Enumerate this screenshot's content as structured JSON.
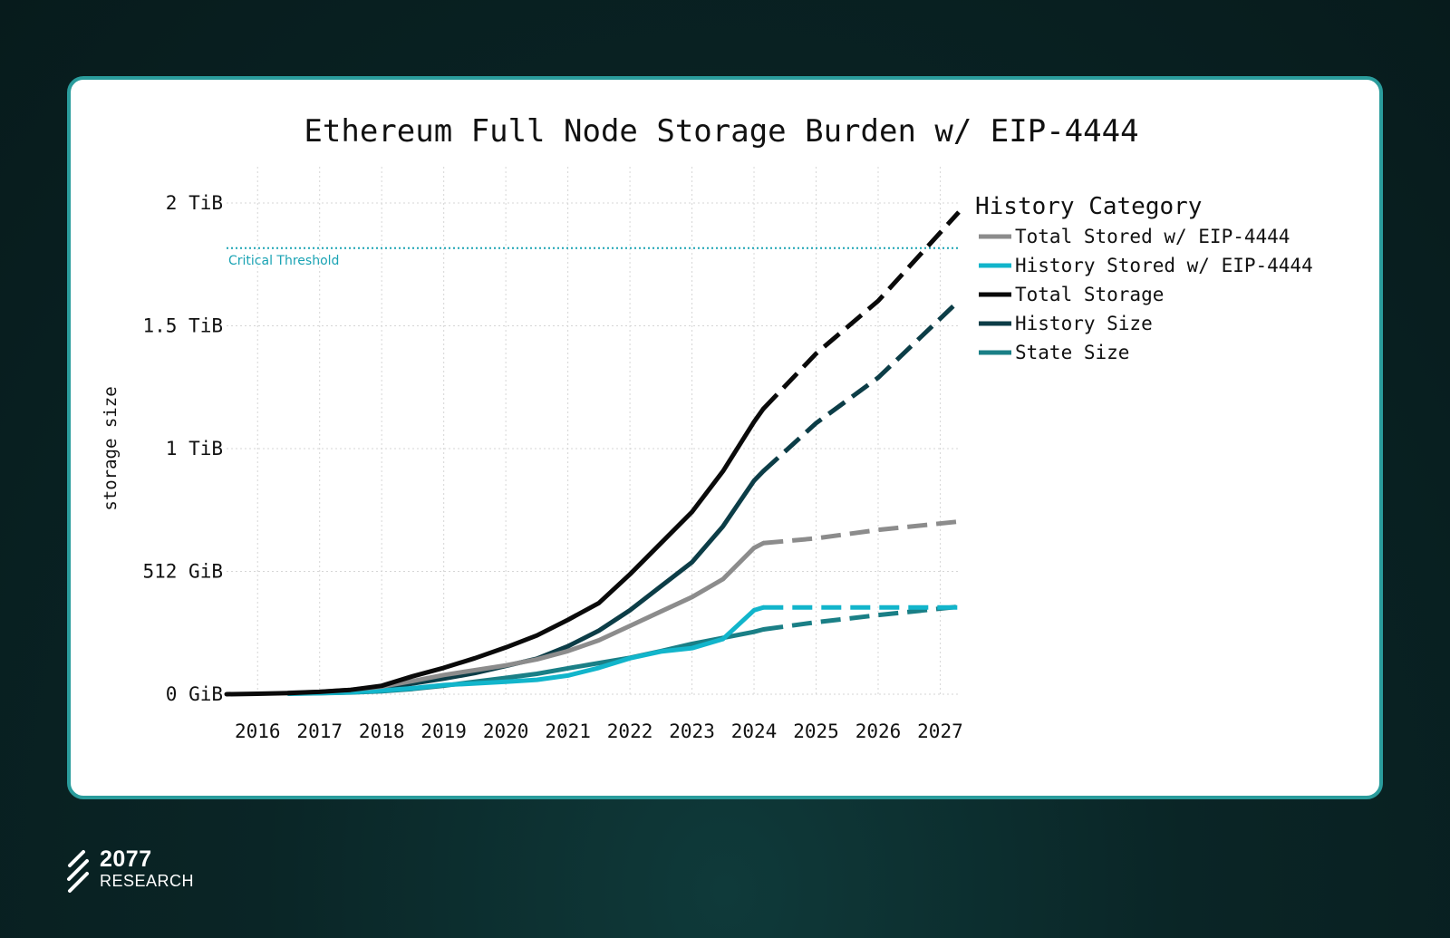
{
  "chart_data": {
    "type": "line",
    "title": "Ethereum Full Node Storage Burden w/ EIP-4444",
    "xlabel": "",
    "ylabel": "storage size",
    "x_ticks": [
      "2016",
      "2017",
      "2018",
      "2019",
      "2020",
      "2021",
      "2022",
      "2023",
      "2024",
      "2025",
      "2026",
      "2027"
    ],
    "y_ticks": [
      {
        "label": "0 GiB",
        "value": 0
      },
      {
        "label": "512 GiB",
        "value": 512
      },
      {
        "label": "1 TiB",
        "value": 1024
      },
      {
        "label": "1.5 TiB",
        "value": 1536
      },
      {
        "label": "2 TiB",
        "value": 2048
      }
    ],
    "y_unit": "GiB",
    "xlim": [
      2015.5,
      2027.3
    ],
    "ylim": [
      0,
      2048
    ],
    "grid": true,
    "threshold": {
      "label": "Critical Threshold",
      "value": 1860,
      "color": "#1aa3b4"
    },
    "legend": {
      "title": "History Category",
      "position": "right"
    },
    "projection_start": 2024.15,
    "series": [
      {
        "name": "Total Stored w/ EIP-4444",
        "color": "#8c8c8c",
        "x": [
          2016.5,
          2017.0,
          2017.5,
          2018.0,
          2018.5,
          2019.0,
          2019.5,
          2020.0,
          2020.5,
          2021.0,
          2021.5,
          2022.0,
          2022.5,
          2023.0,
          2023.5,
          2024.0,
          2024.15,
          2025.0,
          2026.0,
          2027.3
        ],
        "y": [
          6,
          10,
          18,
          32,
          55,
          80,
          100,
          120,
          145,
          180,
          225,
          285,
          345,
          405,
          480,
          610,
          630,
          650,
          685,
          720
        ]
      },
      {
        "name": "History Stored w/ EIP-4444",
        "color": "#12b5cb",
        "x": [
          2016.5,
          2017.0,
          2017.5,
          2018.0,
          2018.5,
          2019.0,
          2019.5,
          2020.0,
          2020.5,
          2021.0,
          2021.5,
          2022.0,
          2022.5,
          2023.0,
          2023.5,
          2024.0,
          2024.15,
          2025.0,
          2026.0,
          2027.3
        ],
        "y": [
          3,
          5,
          8,
          15,
          25,
          38,
          45,
          52,
          60,
          78,
          110,
          150,
          178,
          192,
          230,
          350,
          362,
          362,
          362,
          362
        ]
      },
      {
        "name": "Total Storage",
        "color": "#0a0a0a",
        "x": [
          2015.5,
          2016.0,
          2016.5,
          2017.0,
          2017.5,
          2018.0,
          2018.5,
          2019.0,
          2019.5,
          2020.0,
          2020.5,
          2021.0,
          2021.5,
          2022.0,
          2022.5,
          2023.0,
          2023.5,
          2024.0,
          2024.15,
          2025.0,
          2026.0,
          2027.3
        ],
        "y": [
          0,
          2,
          5,
          10,
          18,
          35,
          75,
          110,
          150,
          195,
          245,
          310,
          380,
          500,
          630,
          760,
          930,
          1135,
          1190,
          1420,
          1640,
          2010
        ]
      },
      {
        "name": "History Size",
        "color": "#0c3d47",
        "x": [
          2016.5,
          2017.0,
          2017.5,
          2018.0,
          2018.5,
          2019.0,
          2019.5,
          2020.0,
          2020.5,
          2021.0,
          2021.5,
          2022.0,
          2022.5,
          2023.0,
          2023.5,
          2024.0,
          2024.15,
          2025.0,
          2026.0,
          2027.3
        ],
        "y": [
          4,
          8,
          14,
          24,
          45,
          65,
          88,
          118,
          148,
          200,
          265,
          350,
          450,
          550,
          700,
          890,
          930,
          1130,
          1320,
          1640
        ]
      },
      {
        "name": "State Size",
        "color": "#1a7f86",
        "x": [
          2016.5,
          2017.0,
          2017.5,
          2018.0,
          2018.5,
          2019.0,
          2019.5,
          2020.0,
          2020.5,
          2021.0,
          2021.5,
          2022.0,
          2022.5,
          2023.0,
          2023.5,
          2024.0,
          2024.15,
          2025.0,
          2026.0,
          2027.3
        ],
        "y": [
          2,
          4,
          7,
          12,
          22,
          35,
          52,
          68,
          85,
          108,
          130,
          152,
          180,
          210,
          235,
          260,
          270,
          300,
          330,
          365
        ]
      }
    ]
  },
  "brand": {
    "number": "2077",
    "name": "RESEARCH"
  }
}
